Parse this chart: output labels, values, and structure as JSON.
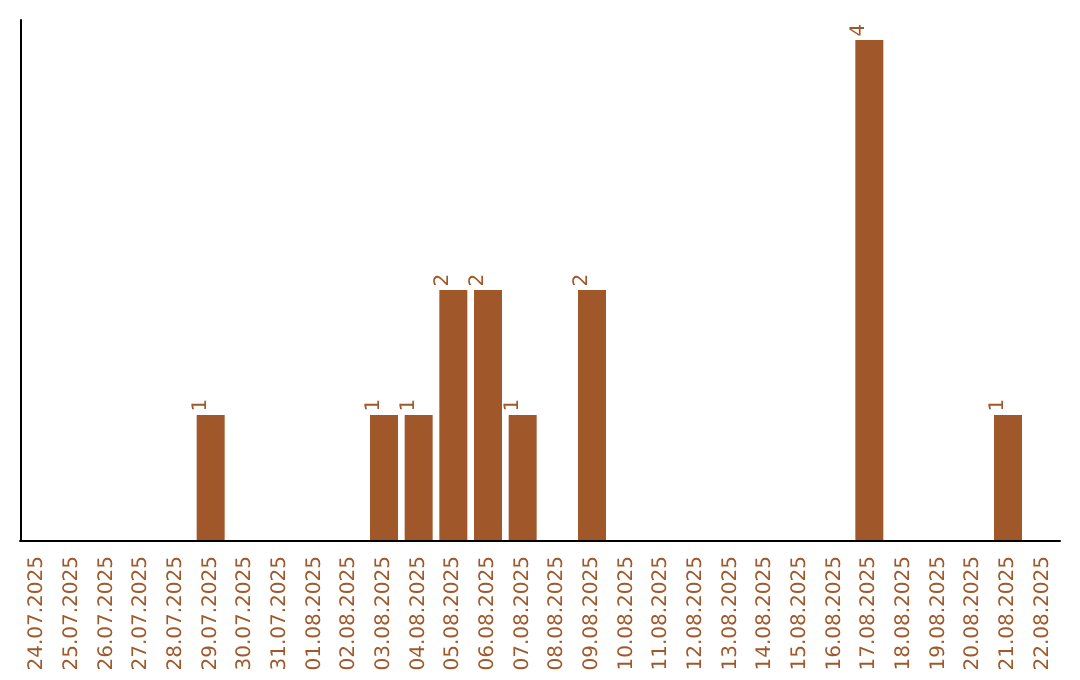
{
  "chart_data": {
    "type": "bar",
    "categories": [
      "24.07.2025",
      "25.07.2025",
      "26.07.2025",
      "27.07.2025",
      "28.07.2025",
      "29.07.2025",
      "30.07.2025",
      "31.07.2025",
      "01.08.2025",
      "02.08.2025",
      "03.08.2025",
      "04.08.2025",
      "05.08.2025",
      "06.08.2025",
      "07.08.2025",
      "08.08.2025",
      "09.08.2025",
      "10.08.2025",
      "11.08.2025",
      "12.08.2025",
      "13.08.2025",
      "14.08.2025",
      "15.08.2025",
      "16.08.2025",
      "17.08.2025",
      "18.08.2025",
      "19.08.2025",
      "20.08.2025",
      "21.08.2025",
      "22.08.2025"
    ],
    "values": [
      0,
      0,
      0,
      0,
      0,
      1,
      0,
      0,
      0,
      0,
      1,
      1,
      2,
      2,
      1,
      0,
      2,
      0,
      0,
      0,
      0,
      0,
      0,
      0,
      4,
      0,
      0,
      0,
      1,
      0
    ],
    "value_labels": [
      null,
      null,
      null,
      null,
      null,
      "1",
      null,
      null,
      null,
      null,
      "1",
      "1",
      "2",
      "2",
      "1",
      null,
      "2",
      null,
      null,
      null,
      null,
      null,
      null,
      null,
      "4",
      null,
      null,
      null,
      "1",
      null
    ],
    "color": "#a0582a",
    "grid": false,
    "tick_labels": "x"
  }
}
